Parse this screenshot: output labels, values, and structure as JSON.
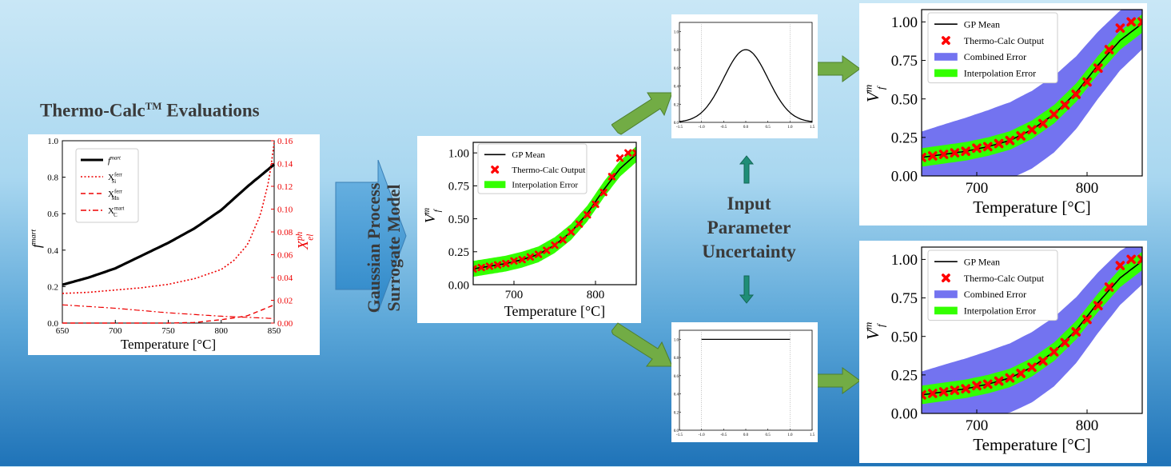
{
  "title": {
    "main": "Thermo-Calc",
    "tm": "TM",
    "rest": " Evaluations"
  },
  "surrogate_label": {
    "line1": "Gaussian Process",
    "line2": "Surrogate Model"
  },
  "uncertainty_label": {
    "line1": "Input",
    "line2": "Parameter",
    "line3": "Uncertainty"
  },
  "colors": {
    "gp_mean": "#000000",
    "thermocalc": "#ff0000",
    "interp": "#33ff00",
    "combined": "#7373f0",
    "arrow_green": "#72ac45",
    "arrow_teal": "#1f8e77"
  },
  "chart_data": [
    {
      "id": "thermocalc_eval",
      "type": "line",
      "xlabel": "Temperature [°C]",
      "ylabel_left": "f^mart",
      "ylabel_right": "X_el^ph",
      "xlim": [
        650,
        850
      ],
      "ylim_left": [
        0,
        1.0
      ],
      "ylim_right": [
        0,
        0.16
      ],
      "xticks": [
        "650",
        "700",
        "750",
        "800",
        "850"
      ],
      "yticks_left": [
        "0.0",
        "0.2",
        "0.4",
        "0.6",
        "0.8",
        "1.0"
      ],
      "yticks_right": [
        "0.00",
        "0.02",
        "0.04",
        "0.06",
        "0.08",
        "0.10",
        "0.12",
        "0.14",
        "0.16"
      ],
      "legend": [
        "f^mart",
        "X_Si^ferr",
        "X_Mn^ferr",
        "X_C^mart"
      ],
      "series": [
        {
          "name": "f^mart",
          "axis": "left",
          "x": [
            650,
            675,
            700,
            725,
            750,
            775,
            800,
            825,
            850
          ],
          "y": [
            0.21,
            0.25,
            0.3,
            0.37,
            0.44,
            0.52,
            0.62,
            0.75,
            0.87
          ]
        },
        {
          "name": "X_Si^ferr",
          "axis": "right",
          "x": [
            650,
            675,
            700,
            725,
            750,
            775,
            800,
            812,
            825,
            837,
            845,
            850
          ],
          "y": [
            0.026,
            0.027,
            0.029,
            0.031,
            0.034,
            0.039,
            0.047,
            0.055,
            0.069,
            0.095,
            0.125,
            0.158
          ]
        },
        {
          "name": "X_Mn^ferr",
          "axis": "right",
          "x": [
            650,
            700,
            750,
            775,
            790,
            800,
            812,
            825,
            837,
            850
          ],
          "y": [
            0,
            0,
            0,
            0.0005,
            0.002,
            0.003,
            0.0045,
            0.0065,
            0.011,
            0.016
          ]
        },
        {
          "name": "X_C^mart",
          "axis": "right",
          "x": [
            650,
            700,
            750,
            800,
            850
          ],
          "y": [
            0.016,
            0.013,
            0.009,
            0.006,
            0.004
          ]
        }
      ]
    },
    {
      "id": "gp_surrogate",
      "type": "line",
      "xlabel": "Temperature [°C]",
      "ylabel": "V_f^m",
      "xlim": [
        650,
        850
      ],
      "ylim": [
        0,
        1.08
      ],
      "xticks": [
        "700",
        "800"
      ],
      "yticks": [
        "0.00",
        "0.25",
        "0.50",
        "0.75",
        "1.00"
      ],
      "legend": [
        "GP Mean",
        "Thermo-Calc Output",
        "Interpolation Error"
      ],
      "gp_x": [
        650,
        670,
        690,
        710,
        730,
        750,
        770,
        790,
        810,
        830,
        850
      ],
      "gp_mean": [
        0.12,
        0.14,
        0.16,
        0.19,
        0.23,
        0.3,
        0.4,
        0.54,
        0.72,
        0.88,
        0.99
      ],
      "interp_error": 0.06,
      "tc_x": [
        650,
        660,
        670,
        680,
        690,
        700,
        710,
        720,
        730,
        740,
        750,
        760,
        770,
        780,
        790,
        800,
        810,
        820,
        830,
        840,
        850
      ],
      "tc_y": [
        0.12,
        0.13,
        0.14,
        0.15,
        0.16,
        0.18,
        0.19,
        0.21,
        0.23,
        0.26,
        0.3,
        0.34,
        0.4,
        0.46,
        0.53,
        0.61,
        0.7,
        0.82,
        0.96,
        1.0,
        1.0
      ]
    },
    {
      "id": "normal_dist",
      "type": "line",
      "xlim": [
        -1.5,
        1.5
      ],
      "ylim": [
        0,
        1.1
      ],
      "xticks": [
        "-1.5",
        "-1.0",
        "-0.5",
        "0.0",
        "0.5",
        "1.0",
        "1.5"
      ],
      "yticks": [
        "0.0",
        "0.2",
        "0.4",
        "0.6",
        "0.8",
        "1.0"
      ],
      "peak": 0.8,
      "sigma": 0.5
    },
    {
      "id": "uniform_dist",
      "type": "line",
      "xlim": [
        -1.5,
        1.5
      ],
      "ylim": [
        0,
        1.1
      ],
      "xticks": [
        "-1.5",
        "-1.0",
        "-0.5",
        "0.0",
        "0.5",
        "1.0",
        "1.5"
      ],
      "yticks": [
        "0.0",
        "0.2",
        "0.4",
        "0.6",
        "0.8",
        "1.0"
      ],
      "level": 1.0,
      "range": [
        -1.0,
        1.0
      ]
    },
    {
      "id": "gp_combined_normal",
      "type": "line",
      "xlabel": "Temperature [°C]",
      "ylabel": "V_f^m",
      "xlim": [
        650,
        850
      ],
      "ylim": [
        0,
        1.08
      ],
      "xticks": [
        "700",
        "800"
      ],
      "yticks": [
        "0.00",
        "0.25",
        "0.50",
        "0.75",
        "1.00"
      ],
      "legend": [
        "GP Mean",
        "Thermo-Calc Output",
        "Combined Error",
        "Interpolation Error"
      ],
      "combined_error": 0.21
    },
    {
      "id": "gp_combined_uniform",
      "type": "line",
      "xlabel": "Temperature [°C]",
      "ylabel": "V_f^m",
      "xlim": [
        650,
        850
      ],
      "ylim": [
        0,
        1.08
      ],
      "xticks": [
        "700",
        "800"
      ],
      "yticks": [
        "0.00",
        "0.25",
        "0.50",
        "0.75",
        "1.00"
      ],
      "legend": [
        "GP Mean",
        "Thermo-Calc Output",
        "Combined Error",
        "Interpolation Error"
      ],
      "combined_error": 0.19
    }
  ]
}
